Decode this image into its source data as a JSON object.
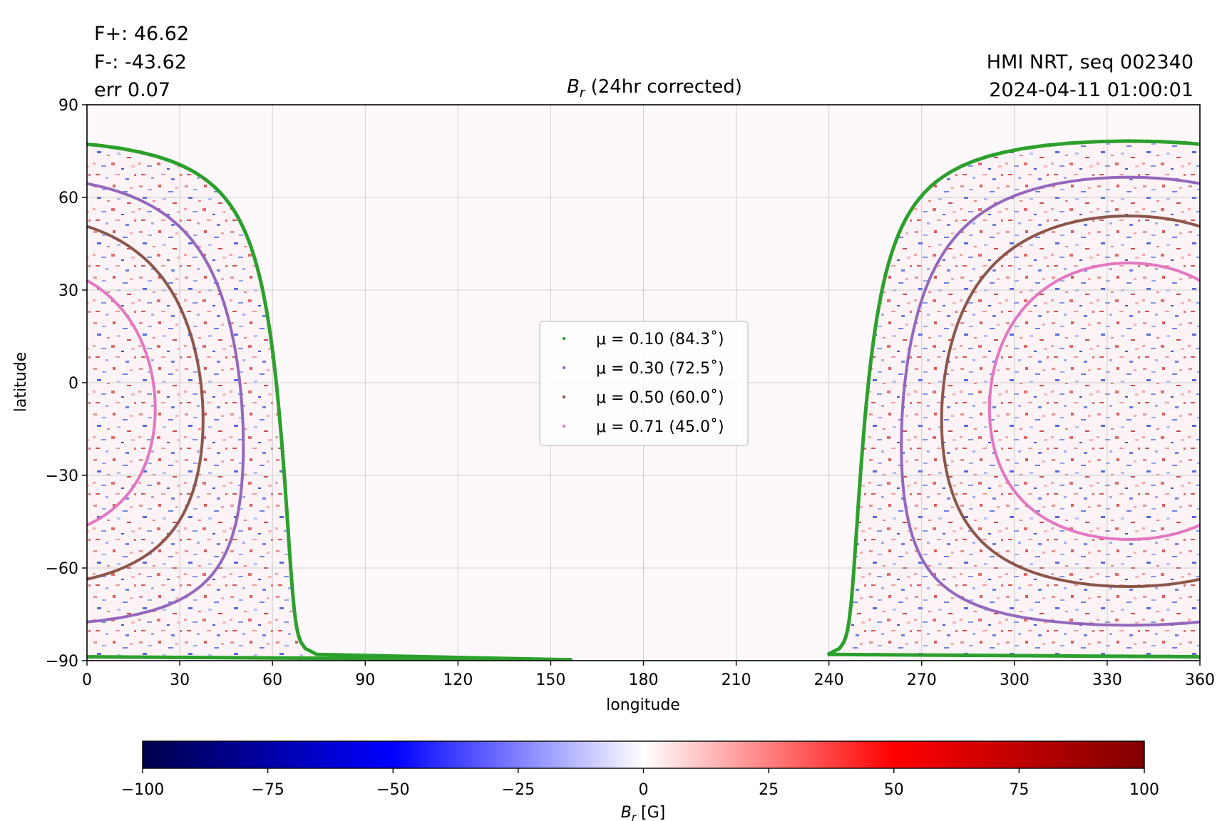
{
  "header": {
    "flux_pos": "F+: 46.62",
    "flux_neg": "F-: -43.62",
    "error": "err 0.07",
    "instrument": "HMI NRT, seq 002340",
    "timestamp": "2024-04-11 01:00:01"
  },
  "chart_data": {
    "type": "heatmap",
    "title_main": "B",
    "title_sub": "r",
    "title_rest": " (24hr corrected)",
    "xlabel": "longitude",
    "ylabel": "latitude",
    "xlim": [
      0,
      360
    ],
    "ylim": [
      -90,
      90
    ],
    "xticks": [
      "0",
      "30",
      "60",
      "90",
      "120",
      "150",
      "180",
      "210",
      "240",
      "270",
      "300",
      "330",
      "360"
    ],
    "yticks": [
      "−90",
      "−60",
      "−30",
      "0",
      "30",
      "60",
      "90"
    ],
    "grid": true,
    "legend_placement": "center",
    "series": [
      {
        "name": "μ = 0.10 (84.3˚)",
        "color": "#2ca02c",
        "mu": 0.1,
        "angle_deg": 84.3
      },
      {
        "name": "μ = 0.30 (72.5˚)",
        "color": "#9467bd",
        "mu": 0.3,
        "angle_deg": 72.5
      },
      {
        "name": "μ = 0.50 (60.0˚)",
        "color": "#8c564b",
        "mu": 0.5,
        "angle_deg": 60.0
      },
      {
        "name": "μ = 0.71 (45.0˚)",
        "color": "#e377c2",
        "mu": 0.71,
        "angle_deg": 45.0
      }
    ],
    "disk_center": {
      "lon": 337,
      "lat": -6
    },
    "colorbar": {
      "cmap": "seismic",
      "range": [
        -100,
        100
      ],
      "ticks": [
        "−100",
        "−75",
        "−50",
        "−25",
        "0",
        "25",
        "50",
        "75",
        "100"
      ],
      "label_main": "B",
      "label_sub": "r",
      "label_rest": " [G]"
    }
  }
}
